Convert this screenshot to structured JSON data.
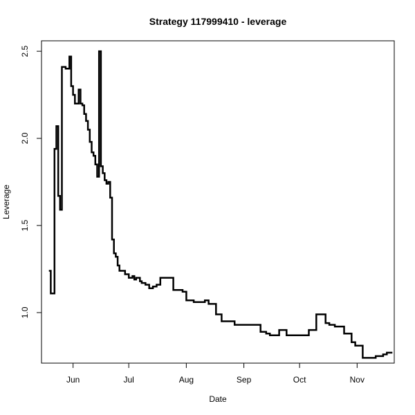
{
  "chart_data": {
    "type": "line",
    "title": "Strategy 117999410 - leverage",
    "xlabel": "Date",
    "ylabel": "Leverage",
    "x_ticks": [
      "Jun",
      "Jul",
      "Aug",
      "Sep",
      "Oct",
      "Nov"
    ],
    "y_ticks": [
      "1.0",
      "1.5",
      "2.0",
      "2.5"
    ],
    "ylim": [
      0.71,
      2.56
    ],
    "xlim": [
      "2012-05-15",
      "2012-11-21"
    ],
    "grid": false,
    "legend": "none",
    "line_color": "#000000",
    "series": [
      {
        "x": [
          "2012-05-19",
          "2012-05-20",
          "2012-05-22",
          "2012-05-23",
          "2012-05-24",
          "2012-05-25",
          "2012-05-26",
          "2012-05-27",
          "2012-05-28",
          "2012-05-30",
          "2012-05-31",
          "2012-06-01",
          "2012-06-02",
          "2012-06-04",
          "2012-06-05",
          "2012-06-06",
          "2012-06-07",
          "2012-06-08",
          "2012-06-09",
          "2012-06-10",
          "2012-06-11",
          "2012-06-12",
          "2012-06-13",
          "2012-06-14",
          "2012-06-15",
          "2012-06-16",
          "2012-06-17",
          "2012-06-18",
          "2012-06-19",
          "2012-06-20",
          "2012-06-21",
          "2012-06-22",
          "2012-06-23",
          "2012-06-24",
          "2012-06-25",
          "2012-06-26",
          "2012-06-27",
          "2012-06-29",
          "2012-07-01",
          "2012-07-02",
          "2012-07-03",
          "2012-07-04",
          "2012-07-05",
          "2012-07-07",
          "2012-07-08",
          "2012-07-10",
          "2012-07-12",
          "2012-07-13",
          "2012-07-14",
          "2012-07-16",
          "2012-07-17",
          "2012-07-18",
          "2012-07-20",
          "2012-07-25",
          "2012-07-30",
          "2012-08-01",
          "2012-08-05",
          "2012-08-11",
          "2012-08-13",
          "2012-08-17",
          "2012-08-20",
          "2012-08-24",
          "2012-08-27",
          "2012-09-10",
          "2012-09-13",
          "2012-09-15",
          "2012-09-20",
          "2012-09-24",
          "2012-10-02",
          "2012-10-06",
          "2012-10-10",
          "2012-10-15",
          "2012-10-17",
          "2012-10-20",
          "2012-10-25",
          "2012-10-29",
          "2012-10-31",
          "2012-11-01",
          "2012-11-04",
          "2012-11-11",
          "2012-11-13",
          "2012-11-15",
          "2012-11-17",
          "2012-11-18",
          "2012-11-20"
        ],
        "y": [
          1.24,
          1.11,
          1.94,
          2.07,
          1.67,
          1.59,
          2.41,
          2.41,
          2.4,
          2.47,
          2.3,
          2.25,
          2.2,
          2.28,
          2.2,
          2.19,
          2.14,
          2.1,
          2.05,
          1.98,
          1.92,
          1.9,
          1.85,
          1.78,
          2.5,
          1.84,
          1.8,
          1.76,
          1.74,
          1.75,
          1.66,
          1.42,
          1.34,
          1.32,
          1.27,
          1.24,
          1.24,
          1.22,
          1.2,
          1.2,
          1.21,
          1.19,
          1.2,
          1.18,
          1.17,
          1.16,
          1.14,
          1.14,
          1.15,
          1.16,
          1.16,
          1.2,
          1.2,
          1.13,
          1.12,
          1.07,
          1.06,
          1.07,
          1.05,
          0.99,
          0.95,
          0.95,
          0.93,
          0.89,
          0.88,
          0.87,
          0.9,
          0.87,
          0.87,
          0.9,
          0.99,
          0.94,
          0.93,
          0.92,
          0.88,
          0.83,
          0.81,
          0.81,
          0.74,
          0.75,
          0.75,
          0.76,
          0.77,
          0.77,
          0.77
        ]
      }
    ]
  }
}
